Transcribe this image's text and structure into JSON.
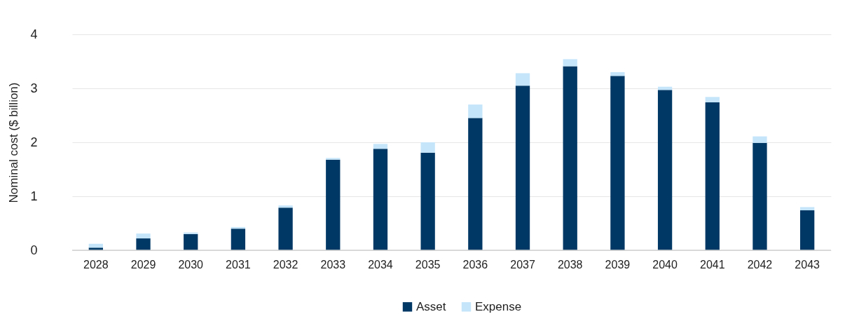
{
  "chart_data": {
    "type": "bar",
    "stacked": true,
    "ylabel": "Nominal cost ($ billion)",
    "categories": [
      "2028",
      "2029",
      "2030",
      "2031",
      "2032",
      "2033",
      "2034",
      "2035",
      "2036",
      "2037",
      "2038",
      "2039",
      "2040",
      "2041",
      "2042",
      "2043"
    ],
    "series": [
      {
        "name": "Asset",
        "color": "#003865",
        "values": [
          0.05,
          0.22,
          0.3,
          0.4,
          0.79,
          1.68,
          1.88,
          1.81,
          2.45,
          3.05,
          3.41,
          3.23,
          2.97,
          2.74,
          1.99,
          0.74
        ]
      },
      {
        "name": "Expense",
        "color": "#c5e5fb",
        "values": [
          0.07,
          0.09,
          0.03,
          0.03,
          0.04,
          0.03,
          0.09,
          0.19,
          0.25,
          0.23,
          0.13,
          0.07,
          0.06,
          0.1,
          0.12,
          0.06
        ]
      }
    ],
    "ylim": [
      0,
      4
    ],
    "yticks": [
      0,
      1,
      2,
      3,
      4
    ],
    "grid": "y",
    "legend": "bottom"
  }
}
